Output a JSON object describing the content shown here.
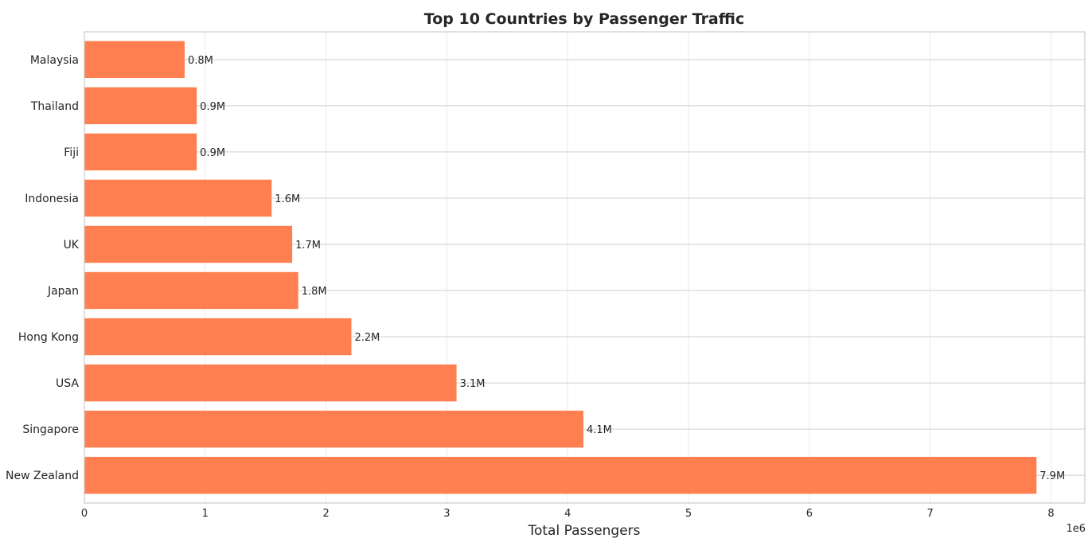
{
  "chart_data": {
    "type": "bar",
    "orientation": "horizontal",
    "title": "Top 10 Countries by Passenger Traffic",
    "xlabel": "Total Passengers",
    "ylabel": "",
    "x_offset_label": "1e6",
    "categories": [
      "New Zealand",
      "Singapore",
      "USA",
      "Hong Kong",
      "Japan",
      "UK",
      "Indonesia",
      "Fiji",
      "Thailand",
      "Malaysia"
    ],
    "values": [
      7880000,
      4130000,
      3080000,
      2210000,
      1770000,
      1720000,
      1550000,
      930000,
      930000,
      830000
    ],
    "value_labels": [
      "7.9M",
      "4.1M",
      "3.1M",
      "2.2M",
      "1.8M",
      "1.7M",
      "1.6M",
      "0.9M",
      "0.9M",
      "0.8M"
    ],
    "xticks": [
      "0",
      "1",
      "2",
      "3",
      "4",
      "5",
      "6",
      "7",
      "8"
    ],
    "xlim": [
      0,
      8280000
    ],
    "grid": true,
    "bar_color": "#ff7f50"
  }
}
